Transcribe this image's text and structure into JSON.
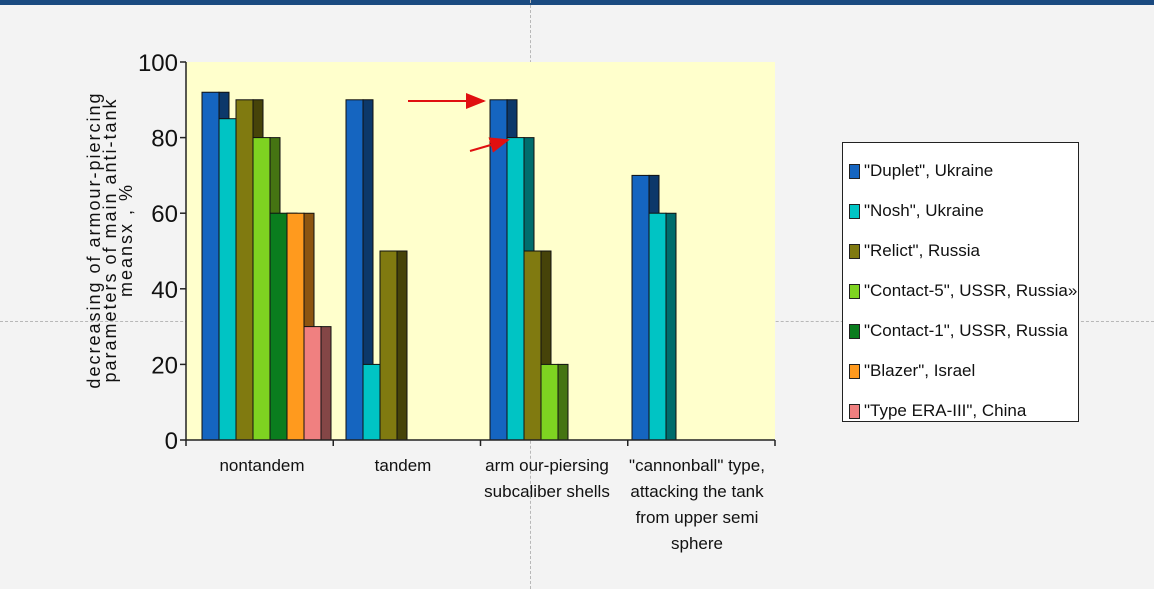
{
  "chart_data": {
    "type": "bar",
    "categories": [
      "nontandem",
      "tandem",
      "arm our-piersing\nsubcaliber shells",
      "\"cannonball\" type,\nattacking the tank\nfrom upper semi\nsphere"
    ],
    "series": [
      {
        "name": "\"Duplet\", Ukraine",
        "color": "#1565c0",
        "values": [
          92,
          90,
          90,
          70
        ]
      },
      {
        "name": "\"Nosh\", Ukraine",
        "color": "#00c4c4",
        "values": [
          85,
          20,
          80,
          60
        ]
      },
      {
        "name": "\"Relict\", Russia",
        "color": "#807a10",
        "values": [
          90,
          50,
          50,
          null
        ]
      },
      {
        "name": "\"Contact-5\", USSR, Russia»",
        "color": "#7ed321",
        "values": [
          80,
          null,
          20,
          null
        ]
      },
      {
        "name": "\"Contact-1\", USSR, Russia",
        "color": "#0a7d1e",
        "values": [
          60,
          null,
          null,
          null
        ]
      },
      {
        "name": "\"Blazer\", Israel",
        "color": "#ff9a1e",
        "values": [
          60,
          null,
          null,
          null
        ]
      },
      {
        "name": "\"Type ERA-III\", China",
        "color": "#f08080",
        "values": [
          30,
          null,
          null,
          null
        ]
      }
    ],
    "ylabel": "decreasing of armour-piercing\nparameters of main anti-tank\nmeansx , %",
    "xlabel": "",
    "ylim": [
      0,
      100
    ],
    "yticks": [
      0,
      20,
      40,
      60,
      80,
      100
    ],
    "plot_background": "#ffffcc",
    "legend_position": "right",
    "grid": false
  }
}
